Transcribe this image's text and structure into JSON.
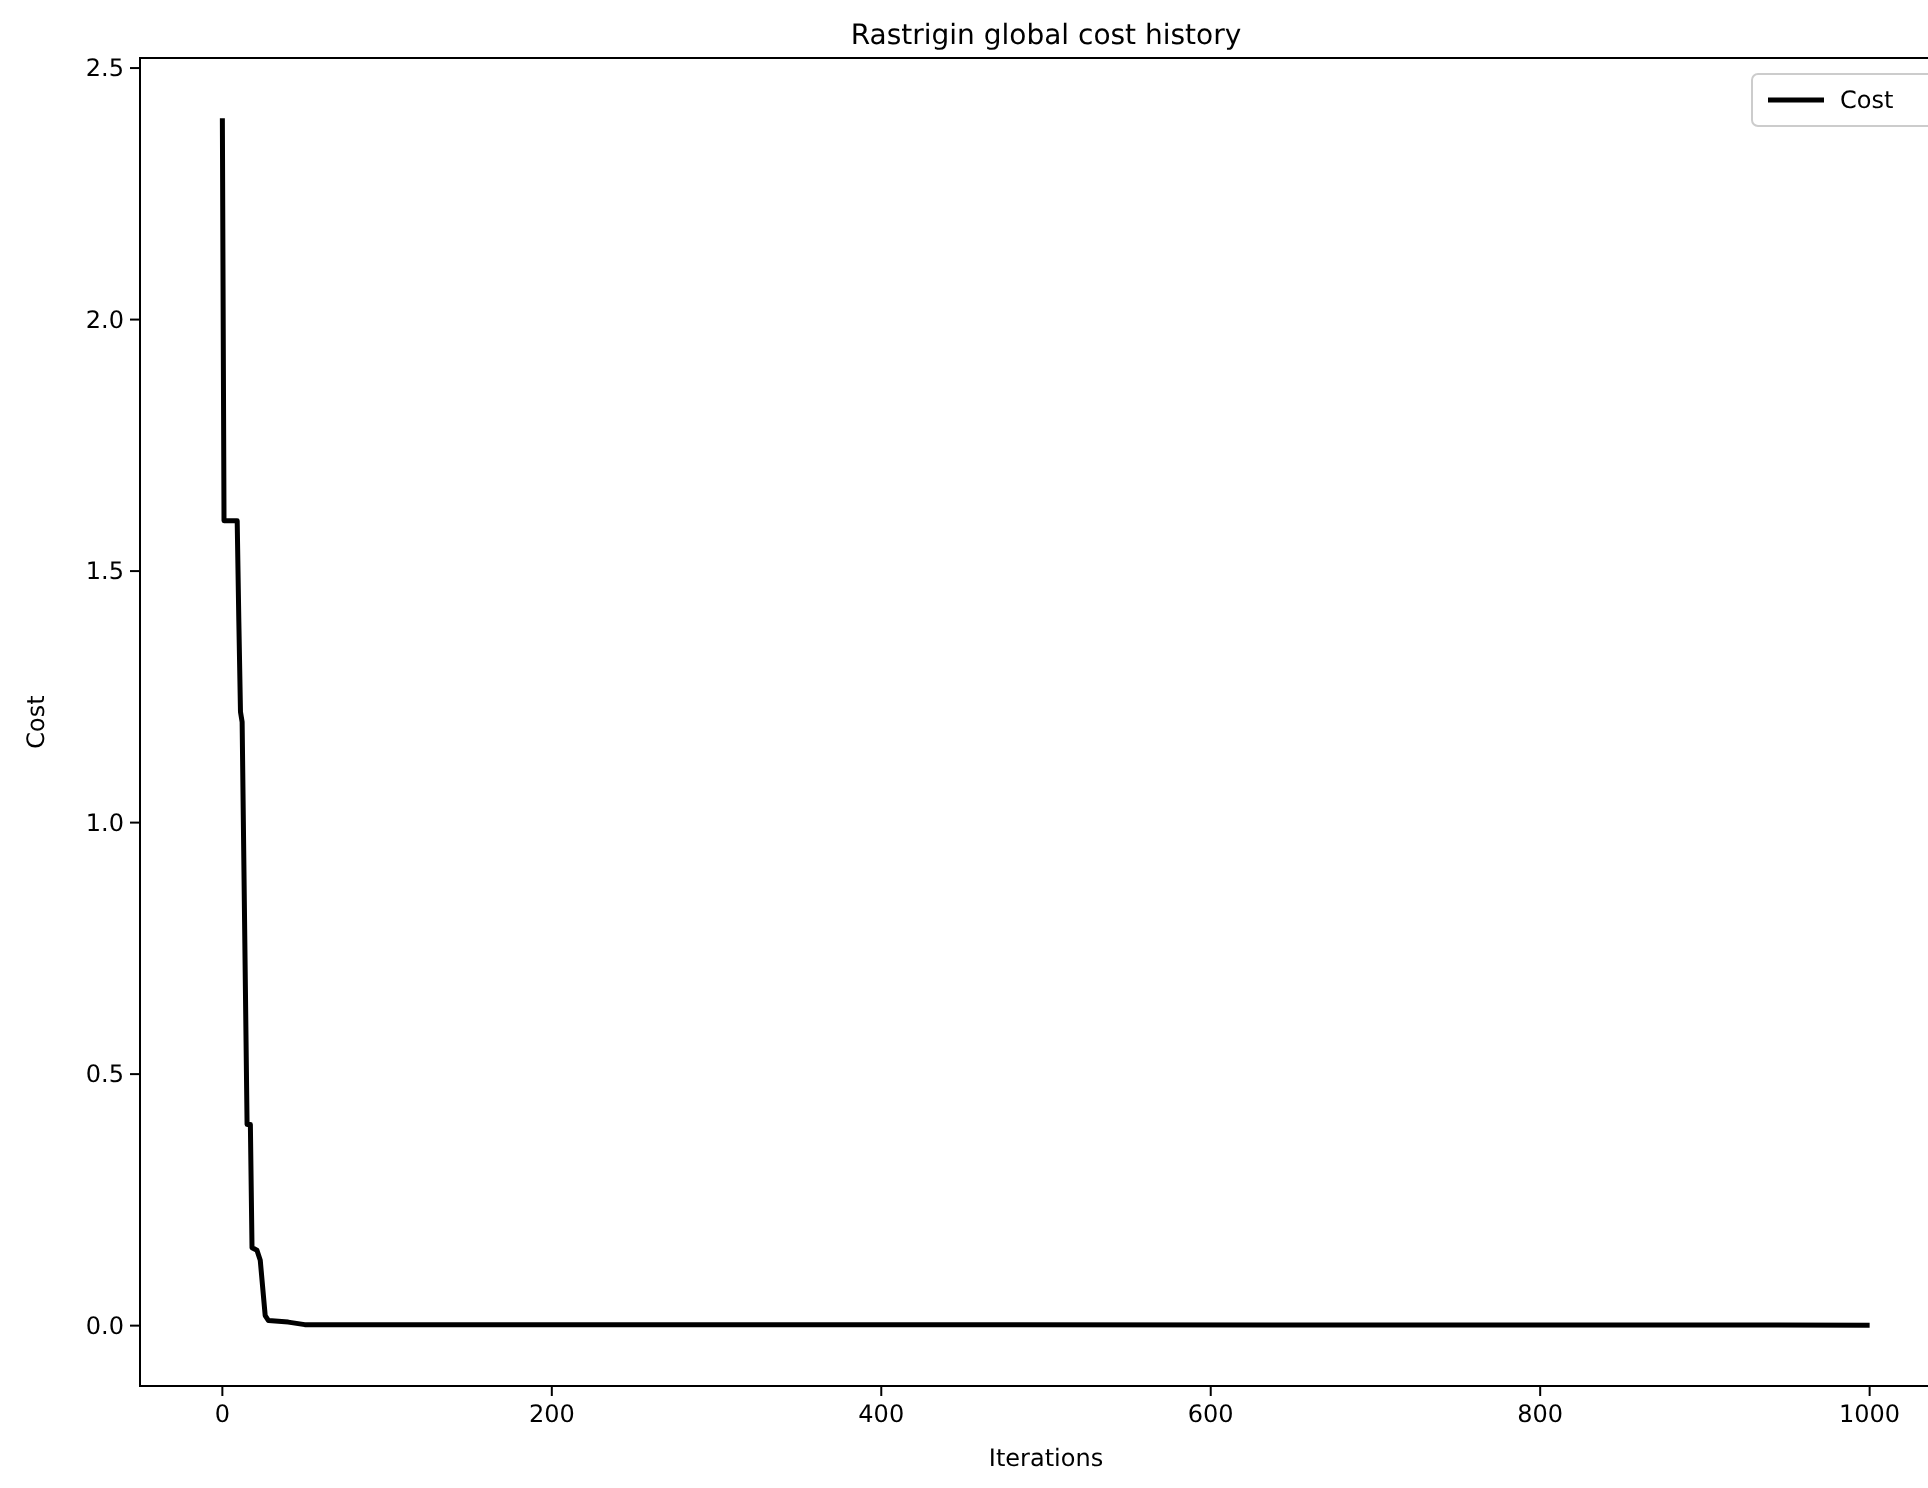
{
  "chart_data": {
    "type": "line",
    "title": "Rastrigin global cost history",
    "xlabel": "Iterations",
    "ylabel": "Cost",
    "xlim": [
      -50,
      1050
    ],
    "xticks": [
      0,
      200,
      400,
      600,
      800,
      1000
    ],
    "ylim": [
      -0.12,
      2.52
    ],
    "yticks": [
      {
        "value": 0,
        "label": "0.0"
      },
      {
        "value": 0.5,
        "label": "0.5"
      },
      {
        "value": 1,
        "label": "1.0"
      },
      {
        "value": 1.5,
        "label": "1.5"
      },
      {
        "value": 2,
        "label": "2.0"
      },
      {
        "value": 2.5,
        "label": "2.5"
      }
    ],
    "grid": false,
    "legend": "top right",
    "marker": "none",
    "line_style": "solid",
    "series": [
      {
        "name": "Cost",
        "color": "#000000",
        "x": [
          0,
          1,
          9,
          10,
          11,
          12,
          15,
          17,
          18,
          21,
          23,
          26,
          28,
          40,
          50,
          1000
        ],
        "values": [
          2.4,
          1.6,
          1.6,
          1.4,
          1.22,
          1.2,
          0.4,
          0.4,
          0.155,
          0.15,
          0.13,
          0.02,
          0.01,
          0.007,
          0.002,
          0.001
        ]
      }
    ]
  }
}
